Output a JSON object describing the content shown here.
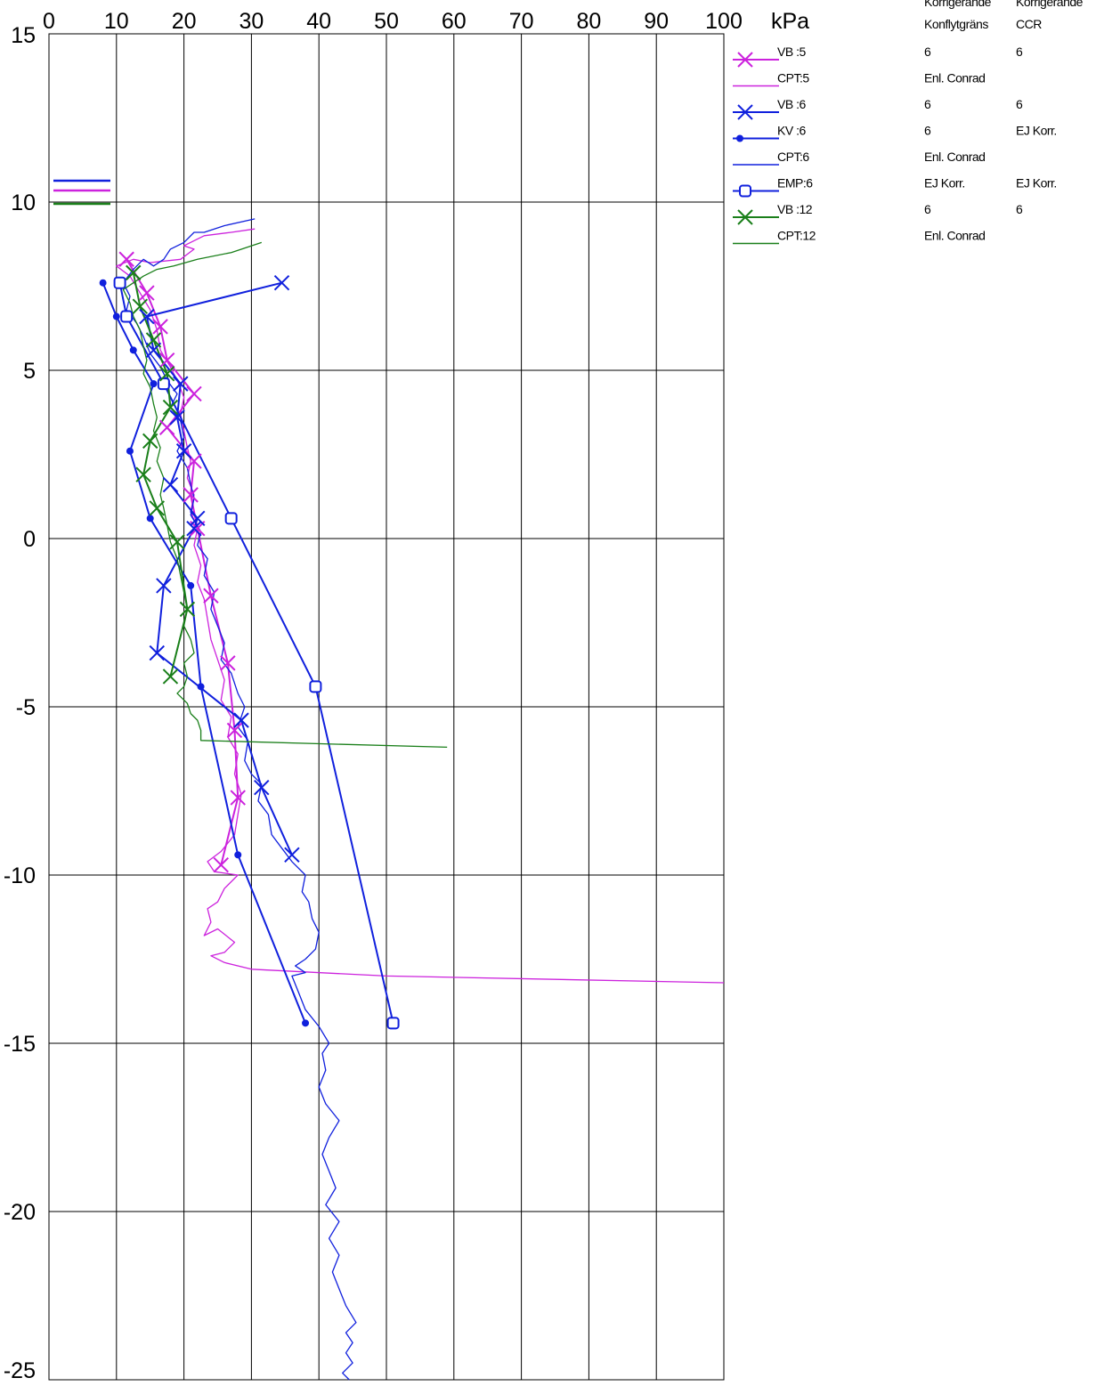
{
  "chart_data": {
    "type": "line",
    "x_unit": "kPa",
    "xlim": [
      0,
      100
    ],
    "ylim": [
      -25,
      15
    ],
    "x_ticks": [
      "0",
      "10",
      "20",
      "30",
      "40",
      "50",
      "60",
      "70",
      "80",
      "90",
      "100"
    ],
    "y_ticks": [
      "15",
      "10",
      "5",
      "0",
      "-5",
      "-10",
      "-15",
      "-20",
      "-25"
    ],
    "grid": true,
    "legend_position": "right",
    "legend_header": {
      "col1": [
        "Korrigerande",
        "Konflytgräns"
      ],
      "col2": [
        "Korrigerande",
        "CCR"
      ]
    },
    "colors": {
      "magenta": "#cc22dd",
      "blue": "#1020dd",
      "green": "#1a7f1a"
    },
    "series": [
      {
        "name": "VB :5",
        "color": "#cc22dd",
        "marker": "x",
        "col1": "6",
        "col2": "6",
        "points": [
          [
            11.5,
            8.3
          ],
          [
            14.5,
            7.3
          ],
          [
            16.5,
            6.3
          ],
          [
            17.5,
            5.3
          ],
          [
            21.5,
            4.3
          ],
          [
            17.5,
            3.3
          ],
          [
            21.5,
            2.3
          ],
          [
            21.0,
            1.3
          ],
          [
            22.0,
            0.3
          ],
          [
            24.0,
            -1.7
          ],
          [
            26.5,
            -3.7
          ],
          [
            27.5,
            -5.7
          ],
          [
            28.0,
            -7.7
          ],
          [
            25.5,
            -9.7
          ]
        ]
      },
      {
        "name": "CPT:5",
        "color": "#cc22dd",
        "marker": "none",
        "col1": "Enl. Conrad",
        "col2": "",
        "points": [
          [
            30.5,
            9.2
          ],
          [
            27,
            9.1
          ],
          [
            23,
            9
          ],
          [
            20,
            8.7
          ],
          [
            21.5,
            8.6
          ],
          [
            19.5,
            8.3
          ],
          [
            15,
            8.2
          ],
          [
            12.5,
            8.3
          ],
          [
            10,
            8.1
          ],
          [
            12,
            7.8
          ],
          [
            13.5,
            7.3
          ],
          [
            15,
            6.8
          ],
          [
            16,
            6.2
          ],
          [
            16.5,
            5.6
          ],
          [
            18,
            5.1
          ],
          [
            19,
            4.7
          ],
          [
            20,
            4.2
          ],
          [
            19.5,
            3.7
          ],
          [
            20,
            3.2
          ],
          [
            20.5,
            2.7
          ],
          [
            21,
            2.3
          ],
          [
            20.5,
            1.8
          ],
          [
            21.5,
            1.3
          ],
          [
            21,
            0.8
          ],
          [
            22,
            0.3
          ],
          [
            21.5,
            -0.2
          ],
          [
            22.5,
            -0.8
          ],
          [
            22,
            -1.3
          ],
          [
            23,
            -1.8
          ],
          [
            23.5,
            -2.4
          ],
          [
            24,
            -3
          ],
          [
            25,
            -3.6
          ],
          [
            26,
            -4.2
          ],
          [
            25.5,
            -4.8
          ],
          [
            27,
            -5.3
          ],
          [
            26.5,
            -5.9
          ],
          [
            28,
            -6.4
          ],
          [
            27.5,
            -7
          ],
          [
            28.5,
            -7.6
          ],
          [
            28,
            -8.2
          ],
          [
            27.5,
            -8.8
          ],
          [
            25.5,
            -9.3
          ],
          [
            23.5,
            -9.6
          ],
          [
            24.5,
            -9.9
          ],
          [
            28,
            -10
          ],
          [
            26,
            -10.4
          ],
          [
            25,
            -10.8
          ],
          [
            23.5,
            -11
          ],
          [
            24,
            -11.4
          ],
          [
            23,
            -11.8
          ],
          [
            25,
            -11.6
          ],
          [
            27.5,
            -12
          ],
          [
            26,
            -12.3
          ],
          [
            24,
            -12.4
          ],
          [
            26,
            -12.6
          ],
          [
            30,
            -12.8
          ],
          [
            50,
            -13
          ],
          [
            100,
            -13.2
          ]
        ]
      },
      {
        "name": "VB :6",
        "color": "#1020dd",
        "marker": "x",
        "col1": "6",
        "col2": "6",
        "points": [
          [
            34.5,
            7.6
          ],
          [
            14.5,
            6.6
          ],
          [
            15.5,
            5.6
          ],
          [
            19.5,
            4.6
          ],
          [
            19,
            3.6
          ],
          [
            20,
            2.6
          ],
          [
            18,
            1.6
          ],
          [
            22,
            0.6
          ],
          [
            21.5,
            0.3
          ],
          [
            17,
            -1.4
          ],
          [
            16,
            -3.4
          ],
          [
            28.5,
            -5.4
          ],
          [
            31.5,
            -7.4
          ],
          [
            36,
            -9.4
          ]
        ]
      },
      {
        "name": "KV :6",
        "color": "#1020dd",
        "marker": "dot",
        "col1": "6",
        "col2": "EJ Korr.",
        "points": [
          [
            8,
            7.6
          ],
          [
            10,
            6.6
          ],
          [
            12.5,
            5.6
          ],
          [
            15.5,
            4.6
          ],
          [
            12,
            2.6
          ],
          [
            15,
            0.6
          ],
          [
            21,
            -1.4
          ],
          [
            22.5,
            -4.4
          ],
          [
            28,
            -9.4
          ],
          [
            38,
            -14.4
          ]
        ]
      },
      {
        "name": "CPT:6",
        "color": "#1020dd",
        "marker": "none",
        "col1": "Enl. Conrad",
        "col2": "",
        "points": [
          [
            30.5,
            9.5
          ],
          [
            26,
            9.3
          ],
          [
            23,
            9.1
          ],
          [
            21.5,
            9.1
          ],
          [
            20,
            8.8
          ],
          [
            18,
            8.6
          ],
          [
            17,
            8.3
          ],
          [
            15.5,
            8.1
          ],
          [
            14,
            8.3
          ],
          [
            12.5,
            8
          ],
          [
            11,
            7.6
          ],
          [
            12,
            7.2
          ],
          [
            11.5,
            6.8
          ],
          [
            13,
            6.4
          ],
          [
            14,
            6
          ],
          [
            15,
            5.5
          ],
          [
            16.5,
            5.1
          ],
          [
            17.5,
            4.7
          ],
          [
            19,
            4.3
          ],
          [
            18,
            3.9
          ],
          [
            19.5,
            3.5
          ],
          [
            20,
            3
          ],
          [
            19,
            2.6
          ],
          [
            20.5,
            2.1
          ],
          [
            21,
            1.6
          ],
          [
            21.5,
            1.2
          ],
          [
            21,
            0.7
          ],
          [
            22.5,
            0.2
          ],
          [
            22,
            -0.2
          ],
          [
            23.5,
            -0.6
          ],
          [
            23,
            -1.1
          ],
          [
            24.5,
            -1.6
          ],
          [
            24,
            -2.1
          ],
          [
            25,
            -2.6
          ],
          [
            26,
            -3.1
          ],
          [
            25.5,
            -3.6
          ],
          [
            27,
            -4
          ],
          [
            28,
            -4.6
          ],
          [
            29,
            -5
          ],
          [
            28,
            -5.6
          ],
          [
            29.5,
            -6
          ],
          [
            29,
            -6.6
          ],
          [
            30,
            -7
          ],
          [
            31.5,
            -7.3
          ],
          [
            31,
            -7.8
          ],
          [
            32.5,
            -8.2
          ],
          [
            33,
            -8.8
          ],
          [
            34.5,
            -9.2
          ],
          [
            36,
            -9.6
          ],
          [
            38,
            -10
          ],
          [
            37.5,
            -10.5
          ],
          [
            38.5,
            -10.8
          ],
          [
            39,
            -11.3
          ],
          [
            40,
            -11.7
          ],
          [
            39.5,
            -12.2
          ],
          [
            38,
            -12.5
          ],
          [
            36.5,
            -12.7
          ],
          [
            38,
            -12.9
          ],
          [
            36,
            -13
          ],
          [
            37,
            -13.5
          ],
          [
            38,
            -14
          ],
          [
            40,
            -14.5
          ],
          [
            41.5,
            -15
          ],
          [
            40.5,
            -15.3
          ],
          [
            41,
            -15.8
          ],
          [
            40,
            -16.3
          ],
          [
            41,
            -16.8
          ],
          [
            43,
            -17.3
          ],
          [
            41.5,
            -17.8
          ],
          [
            40.5,
            -18.3
          ],
          [
            41.5,
            -18.8
          ],
          [
            42.5,
            -19.3
          ],
          [
            41,
            -19.8
          ],
          [
            43,
            -20.3
          ],
          [
            41.5,
            -20.8
          ],
          [
            43,
            -21.3
          ],
          [
            42,
            -21.8
          ],
          [
            43,
            -22.3
          ],
          [
            44,
            -22.8
          ],
          [
            45.5,
            -23.3
          ],
          [
            44,
            -23.6
          ],
          [
            45,
            -23.9
          ],
          [
            44,
            -24.2
          ],
          [
            45,
            -24.5
          ],
          [
            43.5,
            -24.8
          ],
          [
            44.5,
            -25
          ]
        ]
      },
      {
        "name": "EMP:6",
        "color": "#1020dd",
        "marker": "square",
        "col1": "EJ Korr.",
        "col2": "EJ Korr.",
        "points": [
          [
            10.5,
            7.6
          ],
          [
            11.5,
            6.6
          ],
          [
            17,
            4.6
          ],
          [
            27,
            0.6
          ],
          [
            39.5,
            -4.4
          ],
          [
            51,
            -14.4
          ]
        ]
      },
      {
        "name": "VB :12",
        "color": "#1a7f1a",
        "marker": "x",
        "col1": "6",
        "col2": "6",
        "points": [
          [
            12.5,
            7.9
          ],
          [
            13.5,
            6.9
          ],
          [
            15.5,
            5.9
          ],
          [
            17.5,
            4.9
          ],
          [
            18,
            3.9
          ],
          [
            15,
            2.9
          ],
          [
            14,
            1.9
          ],
          [
            16,
            0.9
          ],
          [
            19,
            -0.1
          ],
          [
            20.5,
            -2.1
          ],
          [
            18,
            -4.1
          ]
        ]
      },
      {
        "name": "CPT:12",
        "color": "#1a7f1a",
        "marker": "none",
        "col1": "Enl. Conrad",
        "col2": "",
        "points": [
          [
            31.5,
            8.8
          ],
          [
            27,
            8.5
          ],
          [
            22,
            8.3
          ],
          [
            18.5,
            8.1
          ],
          [
            16,
            8
          ],
          [
            14,
            7.8
          ],
          [
            12.5,
            7.6
          ],
          [
            11,
            7.4
          ],
          [
            12,
            7
          ],
          [
            12.5,
            6.6
          ],
          [
            13.5,
            6.2
          ],
          [
            14,
            5.7
          ],
          [
            14.5,
            5.3
          ],
          [
            14,
            4.9
          ],
          [
            15,
            4.5
          ],
          [
            15.5,
            4
          ],
          [
            16,
            3.6
          ],
          [
            15.5,
            3.2
          ],
          [
            16.5,
            2.7
          ],
          [
            16,
            2.3
          ],
          [
            17,
            1.8
          ],
          [
            16.5,
            1.3
          ],
          [
            17,
            0.9
          ],
          [
            17.5,
            0.4
          ],
          [
            18,
            -0.1
          ],
          [
            19,
            -0.6
          ],
          [
            19.5,
            -1.1
          ],
          [
            20,
            -1.6
          ],
          [
            20.5,
            -2.1
          ],
          [
            20,
            -2.6
          ],
          [
            21,
            -3
          ],
          [
            21.5,
            -3.4
          ],
          [
            20,
            -3.7
          ],
          [
            20.5,
            -4.1
          ],
          [
            20,
            -4.4
          ],
          [
            19,
            -4.6
          ],
          [
            20.5,
            -4.9
          ],
          [
            21,
            -5.2
          ],
          [
            22,
            -5.4
          ],
          [
            22.5,
            -5.7
          ],
          [
            22.5,
            -6
          ],
          [
            59,
            -6.2
          ]
        ]
      }
    ]
  }
}
